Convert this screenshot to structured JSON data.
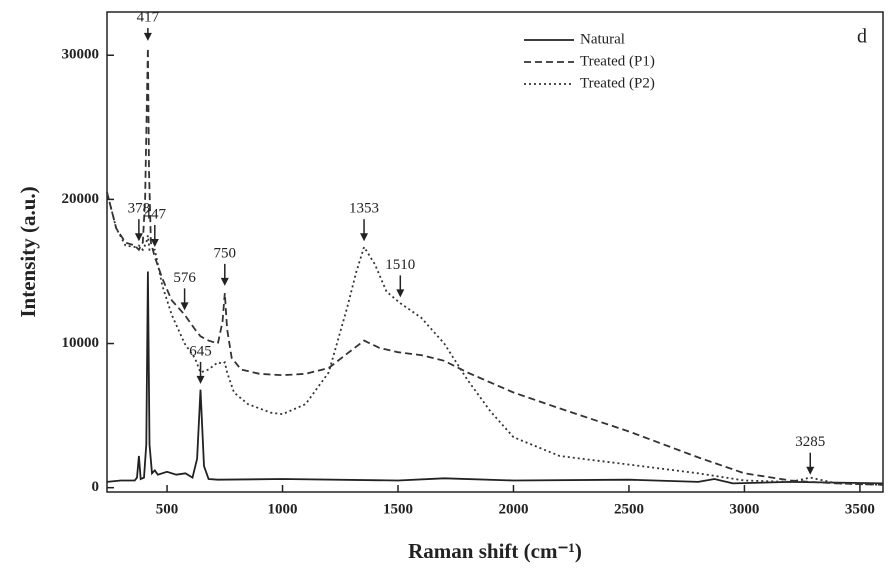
{
  "chart_data": {
    "type": "line",
    "panel_label": "d",
    "x_label": "Raman shift (cm⁻¹)",
    "y_label": "Intensity (a.u.)",
    "xlim": [
      240,
      3600
    ],
    "ylim": [
      -300,
      33000
    ],
    "xticks": [
      500,
      1000,
      1500,
      2000,
      2500,
      3000,
      3500
    ],
    "yticks": [
      0,
      10000,
      20000,
      30000
    ],
    "legend": "upper right",
    "series": [
      {
        "name": "Natural",
        "color": "#222222",
        "style": "solid",
        "x": [
          240,
          300,
          360,
          370,
          378,
          386,
          400,
          410,
          417,
          424,
          435,
          447,
          460,
          500,
          540,
          580,
          610,
          630,
          645,
          660,
          680,
          720,
          1000,
          1500,
          1700,
          2000,
          2500,
          2800,
          2870,
          2950,
          3200,
          3600
        ],
        "values": [
          400,
          500,
          500,
          700,
          2200,
          600,
          700,
          3000,
          15000,
          3000,
          1000,
          1200,
          900,
          1100,
          900,
          1000,
          700,
          2000,
          6800,
          1500,
          600,
          550,
          600,
          500,
          650,
          500,
          550,
          400,
          600,
          300,
          400,
          300
        ]
      },
      {
        "name": "Treated (P1)",
        "color": "#333333",
        "style": "dashed",
        "x": [
          240,
          280,
          320,
          360,
          378,
          395,
          405,
          412,
          417,
          422,
          430,
          447,
          480,
          520,
          576,
          620,
          645,
          680,
          720,
          740,
          750,
          760,
          780,
          820,
          900,
          1000,
          1100,
          1200,
          1280,
          1353,
          1420,
          1500,
          1600,
          1700,
          1800,
          2000,
          2200,
          2500,
          2800,
          3000,
          3200,
          3285,
          3400,
          3600
        ],
        "values": [
          20500,
          18000,
          17000,
          16800,
          16500,
          17000,
          20000,
          26000,
          30500,
          22000,
          17000,
          16000,
          14500,
          13000,
          12000,
          11000,
          10500,
          10200,
          10000,
          11500,
          13500,
          11000,
          9000,
          8200,
          7900,
          7800,
          7900,
          8300,
          9300,
          10200,
          9700,
          9400,
          9200,
          8800,
          8000,
          6600,
          5500,
          3900,
          2100,
          1000,
          500,
          400,
          300,
          200
        ]
      },
      {
        "name": "Treated (P2)",
        "color": "#333333",
        "style": "dotted",
        "x": [
          240,
          280,
          320,
          360,
          378,
          395,
          410,
          417,
          424,
          447,
          480,
          520,
          576,
          620,
          645,
          680,
          720,
          740,
          750,
          760,
          790,
          850,
          950,
          1000,
          1100,
          1200,
          1280,
          1320,
          1353,
          1400,
          1450,
          1510,
          1600,
          1700,
          1800,
          1900,
          2000,
          2200,
          2500,
          2800,
          3000,
          3200,
          3285,
          3400,
          3600
        ],
        "values": [
          20500,
          18000,
          16800,
          16700,
          16800,
          16500,
          17000,
          17500,
          16500,
          16500,
          14000,
          12000,
          10000,
          9000,
          8000,
          8200,
          8700,
          8600,
          8700,
          8000,
          6600,
          5800,
          5200,
          5100,
          5800,
          8000,
          12500,
          15000,
          16700,
          15500,
          13600,
          12800,
          11800,
          10000,
          7500,
          5300,
          3500,
          2200,
          1600,
          1000,
          500,
          400,
          700,
          300,
          200
        ]
      }
    ],
    "annotations": [
      {
        "text": "417",
        "x": 417,
        "y": 31000
      },
      {
        "text": "378",
        "x": 378,
        "y": 17100
      },
      {
        "text": "447",
        "x": 447,
        "y": 16700
      },
      {
        "text": "576",
        "x": 576,
        "y": 12300
      },
      {
        "text": "750",
        "x": 750,
        "y": 14000
      },
      {
        "text": "645",
        "x": 645,
        "y": 7200
      },
      {
        "text": "1353",
        "x": 1353,
        "y": 17100
      },
      {
        "text": "1510",
        "x": 1510,
        "y": 13200
      },
      {
        "text": "3285",
        "x": 3285,
        "y": 900
      }
    ]
  }
}
